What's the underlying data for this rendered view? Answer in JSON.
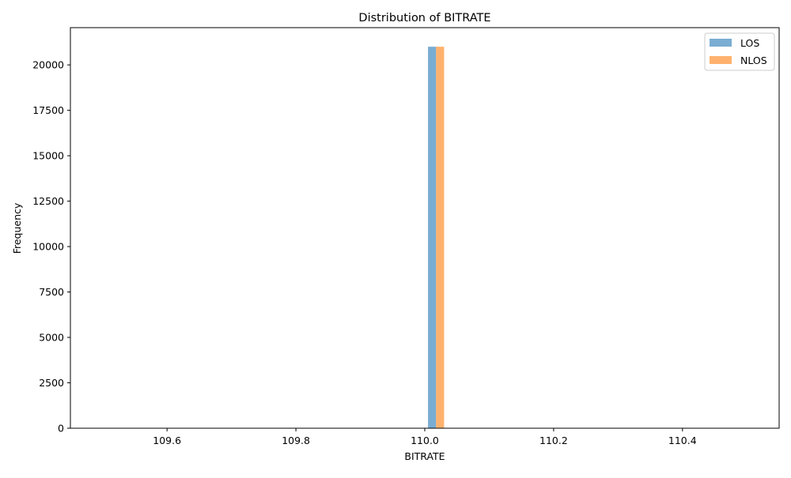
{
  "chart_data": {
    "type": "bar",
    "title": "Distribution of BITRATE",
    "xlabel": "BITRATE",
    "ylabel": "Frequency",
    "xlim": [
      109.45,
      110.55
    ],
    "ylim": [
      0,
      22050
    ],
    "x_ticks": [
      109.6,
      109.8,
      110.0,
      110.2,
      110.4
    ],
    "x_tick_labels": [
      "109.6",
      "109.8",
      "110.0",
      "110.2",
      "110.4"
    ],
    "y_ticks": [
      0,
      2500,
      5000,
      7500,
      10000,
      12500,
      15000,
      17500,
      20000
    ],
    "y_tick_labels": [
      "0",
      "2500",
      "5000",
      "7500",
      "10000",
      "12500",
      "15000",
      "17500",
      "20000"
    ],
    "grid": false,
    "legend_position": "top-right",
    "series": [
      {
        "name": "LOS",
        "color": "#1f77b4",
        "opacity": 0.6,
        "bars": [
          {
            "x_start": 110.005,
            "x_end": 110.0175,
            "value": 21000
          }
        ]
      },
      {
        "name": "NLOS",
        "color": "#ff7f0e",
        "opacity": 0.6,
        "bars": [
          {
            "x_start": 110.0175,
            "x_end": 110.03,
            "value": 21000
          }
        ]
      }
    ]
  }
}
